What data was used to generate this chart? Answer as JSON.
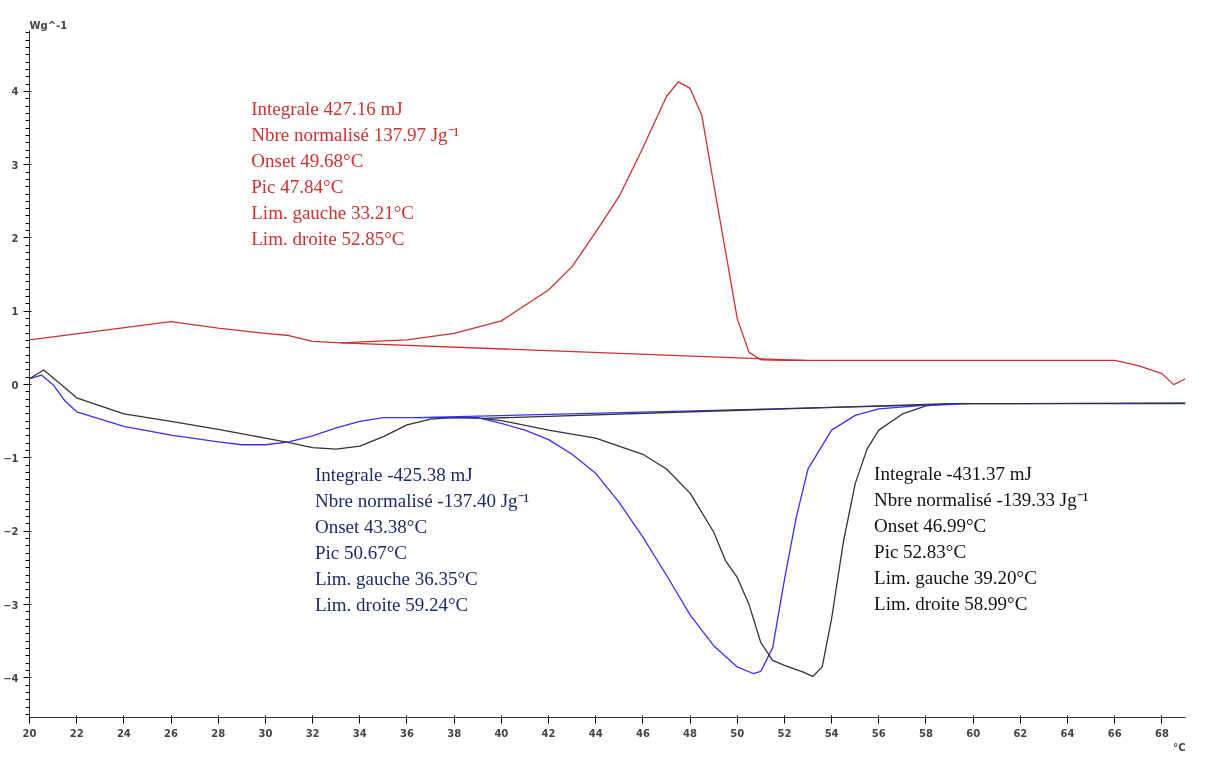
{
  "chart_data": {
    "type": "line",
    "xlabel": "°C",
    "ylabel": "Wg^-1",
    "xlim": [
      20,
      69
    ],
    "ylim": [
      -4.54,
      4.83
    ],
    "xticks": [
      20,
      22,
      24,
      26,
      28,
      30,
      32,
      34,
      36,
      38,
      40,
      42,
      44,
      46,
      48,
      50,
      52,
      54,
      56,
      58,
      60,
      62,
      64,
      66,
      68
    ],
    "yticks": [
      -4,
      -3,
      -2,
      -1,
      0,
      1,
      2,
      3,
      4
    ],
    "grid": false,
    "marker": "none",
    "line_style": "solid",
    "series": [
      {
        "color": "#d03030",
        "x": [
          20,
          26,
          28,
          30,
          31,
          32,
          33.2,
          36,
          38,
          40,
          42,
          43,
          44,
          45,
          46,
          47,
          47.5,
          48,
          48.5,
          49,
          49.5,
          50,
          50.5,
          51,
          52,
          55,
          60,
          66,
          67,
          68,
          68.5,
          69
        ],
        "values": [
          0.61,
          0.86,
          0.77,
          0.7,
          0.67,
          0.59,
          0.57,
          0.61,
          0.7,
          0.87,
          1.29,
          1.61,
          2.08,
          2.57,
          3.23,
          3.93,
          4.13,
          4.04,
          3.67,
          2.74,
          1.82,
          0.9,
          0.44,
          0.34,
          0.33,
          0.33,
          0.33,
          0.33,
          0.26,
          0.15,
          0.0,
          0.08
        ]
      },
      {
        "color": "#3333ff",
        "x": [
          20,
          20.5,
          21,
          21.5,
          22,
          24,
          26,
          28,
          29,
          30,
          31,
          32,
          33,
          34,
          35,
          36.35,
          38,
          39,
          40,
          41,
          42,
          43,
          44,
          45,
          46,
          47,
          48,
          49,
          50,
          50.67,
          51,
          51.5,
          52,
          52.5,
          53,
          54,
          55,
          56,
          58,
          60,
          69
        ],
        "values": [
          0.08,
          0.13,
          0.0,
          -0.22,
          -0.37,
          -0.57,
          -0.69,
          -0.78,
          -0.82,
          -0.82,
          -0.78,
          -0.7,
          -0.59,
          -0.5,
          -0.45,
          -0.45,
          -0.45,
          -0.45,
          -0.53,
          -0.62,
          -0.75,
          -0.95,
          -1.21,
          -1.61,
          -2.08,
          -2.6,
          -3.14,
          -3.56,
          -3.85,
          -3.94,
          -3.91,
          -3.59,
          -2.66,
          -1.81,
          -1.15,
          -0.62,
          -0.42,
          -0.33,
          -0.28,
          -0.26,
          -0.25
        ]
      },
      {
        "color": "#333333",
        "x": [
          20,
          20.6,
          21.2,
          22,
          24,
          26,
          28,
          30,
          31,
          32,
          33,
          34,
          35,
          36,
          37,
          38,
          39.2,
          40,
          42,
          44,
          46,
          47,
          48,
          49,
          49.5,
          50,
          50.5,
          51,
          51.5,
          52,
          52.8,
          53.2,
          53.6,
          54,
          54.5,
          55,
          55.5,
          56,
          57,
          58,
          59,
          69
        ],
        "values": [
          0.08,
          0.2,
          0.04,
          -0.18,
          -0.4,
          -0.5,
          -0.61,
          -0.73,
          -0.79,
          -0.86,
          -0.88,
          -0.84,
          -0.71,
          -0.55,
          -0.47,
          -0.45,
          -0.46,
          -0.49,
          -0.62,
          -0.73,
          -0.95,
          -1.15,
          -1.48,
          -2.01,
          -2.4,
          -2.63,
          -3.0,
          -3.52,
          -3.76,
          -3.83,
          -3.92,
          -3.98,
          -3.85,
          -3.19,
          -2.14,
          -1.35,
          -0.88,
          -0.62,
          -0.4,
          -0.29,
          -0.26,
          -0.26
        ]
      },
      {
        "color": "#d03030",
        "x": [
          33.21,
          52.85
        ],
        "values": [
          0.57,
          0.33
        ]
      },
      {
        "color": "#3333ff",
        "x": [
          36.35,
          59.24
        ],
        "values": [
          -0.45,
          -0.27
        ]
      },
      {
        "color": "#333333",
        "x": [
          39.2,
          58.99
        ],
        "values": [
          -0.46,
          -0.26
        ]
      }
    ],
    "annotations": [
      "Integrale  427.16 mJ\nNbre normalisé  137.97 Jg⁻¹\nOnset 49.68°C\nPic 47.84°C\nLim. gauche 33.21°C\nLim. droite 52.85°C",
      "Integrale  -425.38 mJ\nNbre normalisé  -137.40 Jg⁻¹\nOnset 43.38°C\nPic 50.67°C\nLim. gauche 36.35°C\nLim. droite 59.24°C",
      "Integrale  -431.37 mJ\nNbre normalisé  -139.33 Jg⁻¹\nOnset 46.99°C\nPic 52.83°C\nLim. gauche 39.20°C\nLim. droite 58.99°C"
    ]
  }
}
